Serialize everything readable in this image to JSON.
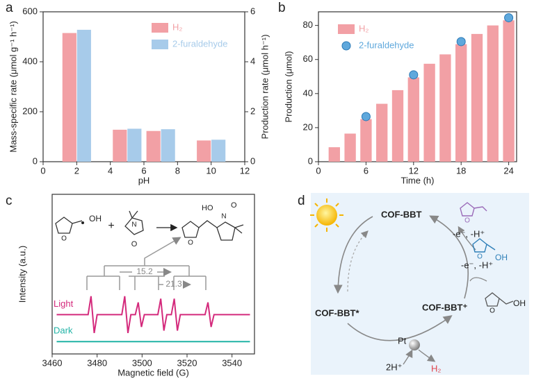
{
  "chart_data": [
    {
      "type": "bar",
      "panel_label": "a",
      "x": [
        2,
        5,
        7,
        10
      ],
      "xlim": [
        0,
        12
      ],
      "xticks": [
        0,
        2,
        4,
        6,
        8,
        10,
        12
      ],
      "xlabel": "pH",
      "ylabel": "Mass-specific rate (μmol g⁻¹ h⁻¹)",
      "y2label": "Production rate (μmol h⁻¹)",
      "ylim": [
        0,
        600
      ],
      "yticks": [
        0,
        200,
        400,
        600
      ],
      "y2lim": [
        0,
        6
      ],
      "y2ticks": [
        0,
        2,
        4,
        6
      ],
      "legend": "upper right",
      "series": [
        {
          "name": "H₂",
          "color": "#f2a0a5",
          "values": [
            515,
            128,
            123,
            85
          ]
        },
        {
          "name": "2-furaldehyde",
          "color": "#a7cbea",
          "axis": "y2",
          "values": [
            5.28,
            1.32,
            1.3,
            0.88
          ]
        }
      ]
    },
    {
      "type": "bar",
      "panel_label": "b",
      "x": [
        2,
        4,
        6,
        8,
        10,
        12,
        14,
        16,
        18,
        20,
        22,
        24
      ],
      "xlim": [
        0,
        25
      ],
      "xticks": [
        0,
        6,
        12,
        18,
        24
      ],
      "xlabel": "Time (h)",
      "ylabel": "Production (μmol)",
      "ylim": [
        0,
        88
      ],
      "yticks": [
        0,
        20,
        40,
        60,
        80
      ],
      "legend": "upper left",
      "series": [
        {
          "name": "H₂",
          "color": "#f2a0a5",
          "values": [
            8.5,
            16.5,
            25,
            34,
            42,
            49.5,
            57.5,
            63,
            69,
            75,
            80,
            83
          ]
        },
        {
          "name": "2-furaldehyde",
          "color": "#5fa8dc",
          "type": "scatter",
          "x": [
            6,
            12,
            18,
            24
          ],
          "values": [
            26.5,
            51,
            70.5,
            84.5
          ]
        }
      ]
    },
    {
      "type": "line",
      "panel_label": "c",
      "xlim": [
        3460,
        3550
      ],
      "xticks": [
        3460,
        3480,
        3500,
        3520,
        3540
      ],
      "xlabel": "Magnetic field (G)",
      "ylabel": "Intensity (a.u.)",
      "ylim": [
        -1,
        12
      ],
      "legend": "inline",
      "annotations": [
        "15.2",
        "21.3"
      ],
      "scheme_labels": [
        "O",
        "OH",
        "+",
        "N",
        "O",
        "O",
        "HO",
        "N",
        "O"
      ],
      "series": [
        {
          "name": "Light",
          "color": "#d42a7c",
          "x": [
            3462,
            3476,
            3477.3,
            3478.7,
            3480,
            3491,
            3492.3,
            3493.7,
            3495,
            3497,
            3498.3,
            3499.7,
            3501,
            3507,
            3508.3,
            3509.7,
            3511,
            3513,
            3514.3,
            3515.7,
            3517,
            3528,
            3529.3,
            3530.7,
            3532,
            3548
          ],
          "values": [
            2.2,
            2.2,
            3.7,
            0.7,
            2.2,
            2.2,
            3.7,
            0.7,
            2.2,
            2.2,
            3.2,
            1.2,
            2.2,
            2.2,
            3.5,
            0.9,
            2.2,
            2.2,
            3.5,
            0.9,
            2.2,
            2.2,
            3.2,
            1.2,
            2.2,
            2.2
          ]
        },
        {
          "name": "Dark",
          "color": "#20b3a6",
          "x": [
            3462,
            3480,
            3500,
            3520,
            3548
          ],
          "values": [
            0,
            0,
            0,
            0,
            0
          ]
        }
      ]
    }
  ],
  "diagram": {
    "panel_label": "d",
    "nodes": [
      "COF-BBT",
      "COF-BBT*",
      "COF-BBT⁺"
    ],
    "steps": [
      "-e⁻, -H⁺",
      "-e⁻, -H⁺"
    ],
    "catalyst": "Pt",
    "reactant": "2H⁺",
    "product": "H₂",
    "molecule_labels": [
      "O",
      "O",
      "OH",
      "O",
      "OH"
    ]
  }
}
